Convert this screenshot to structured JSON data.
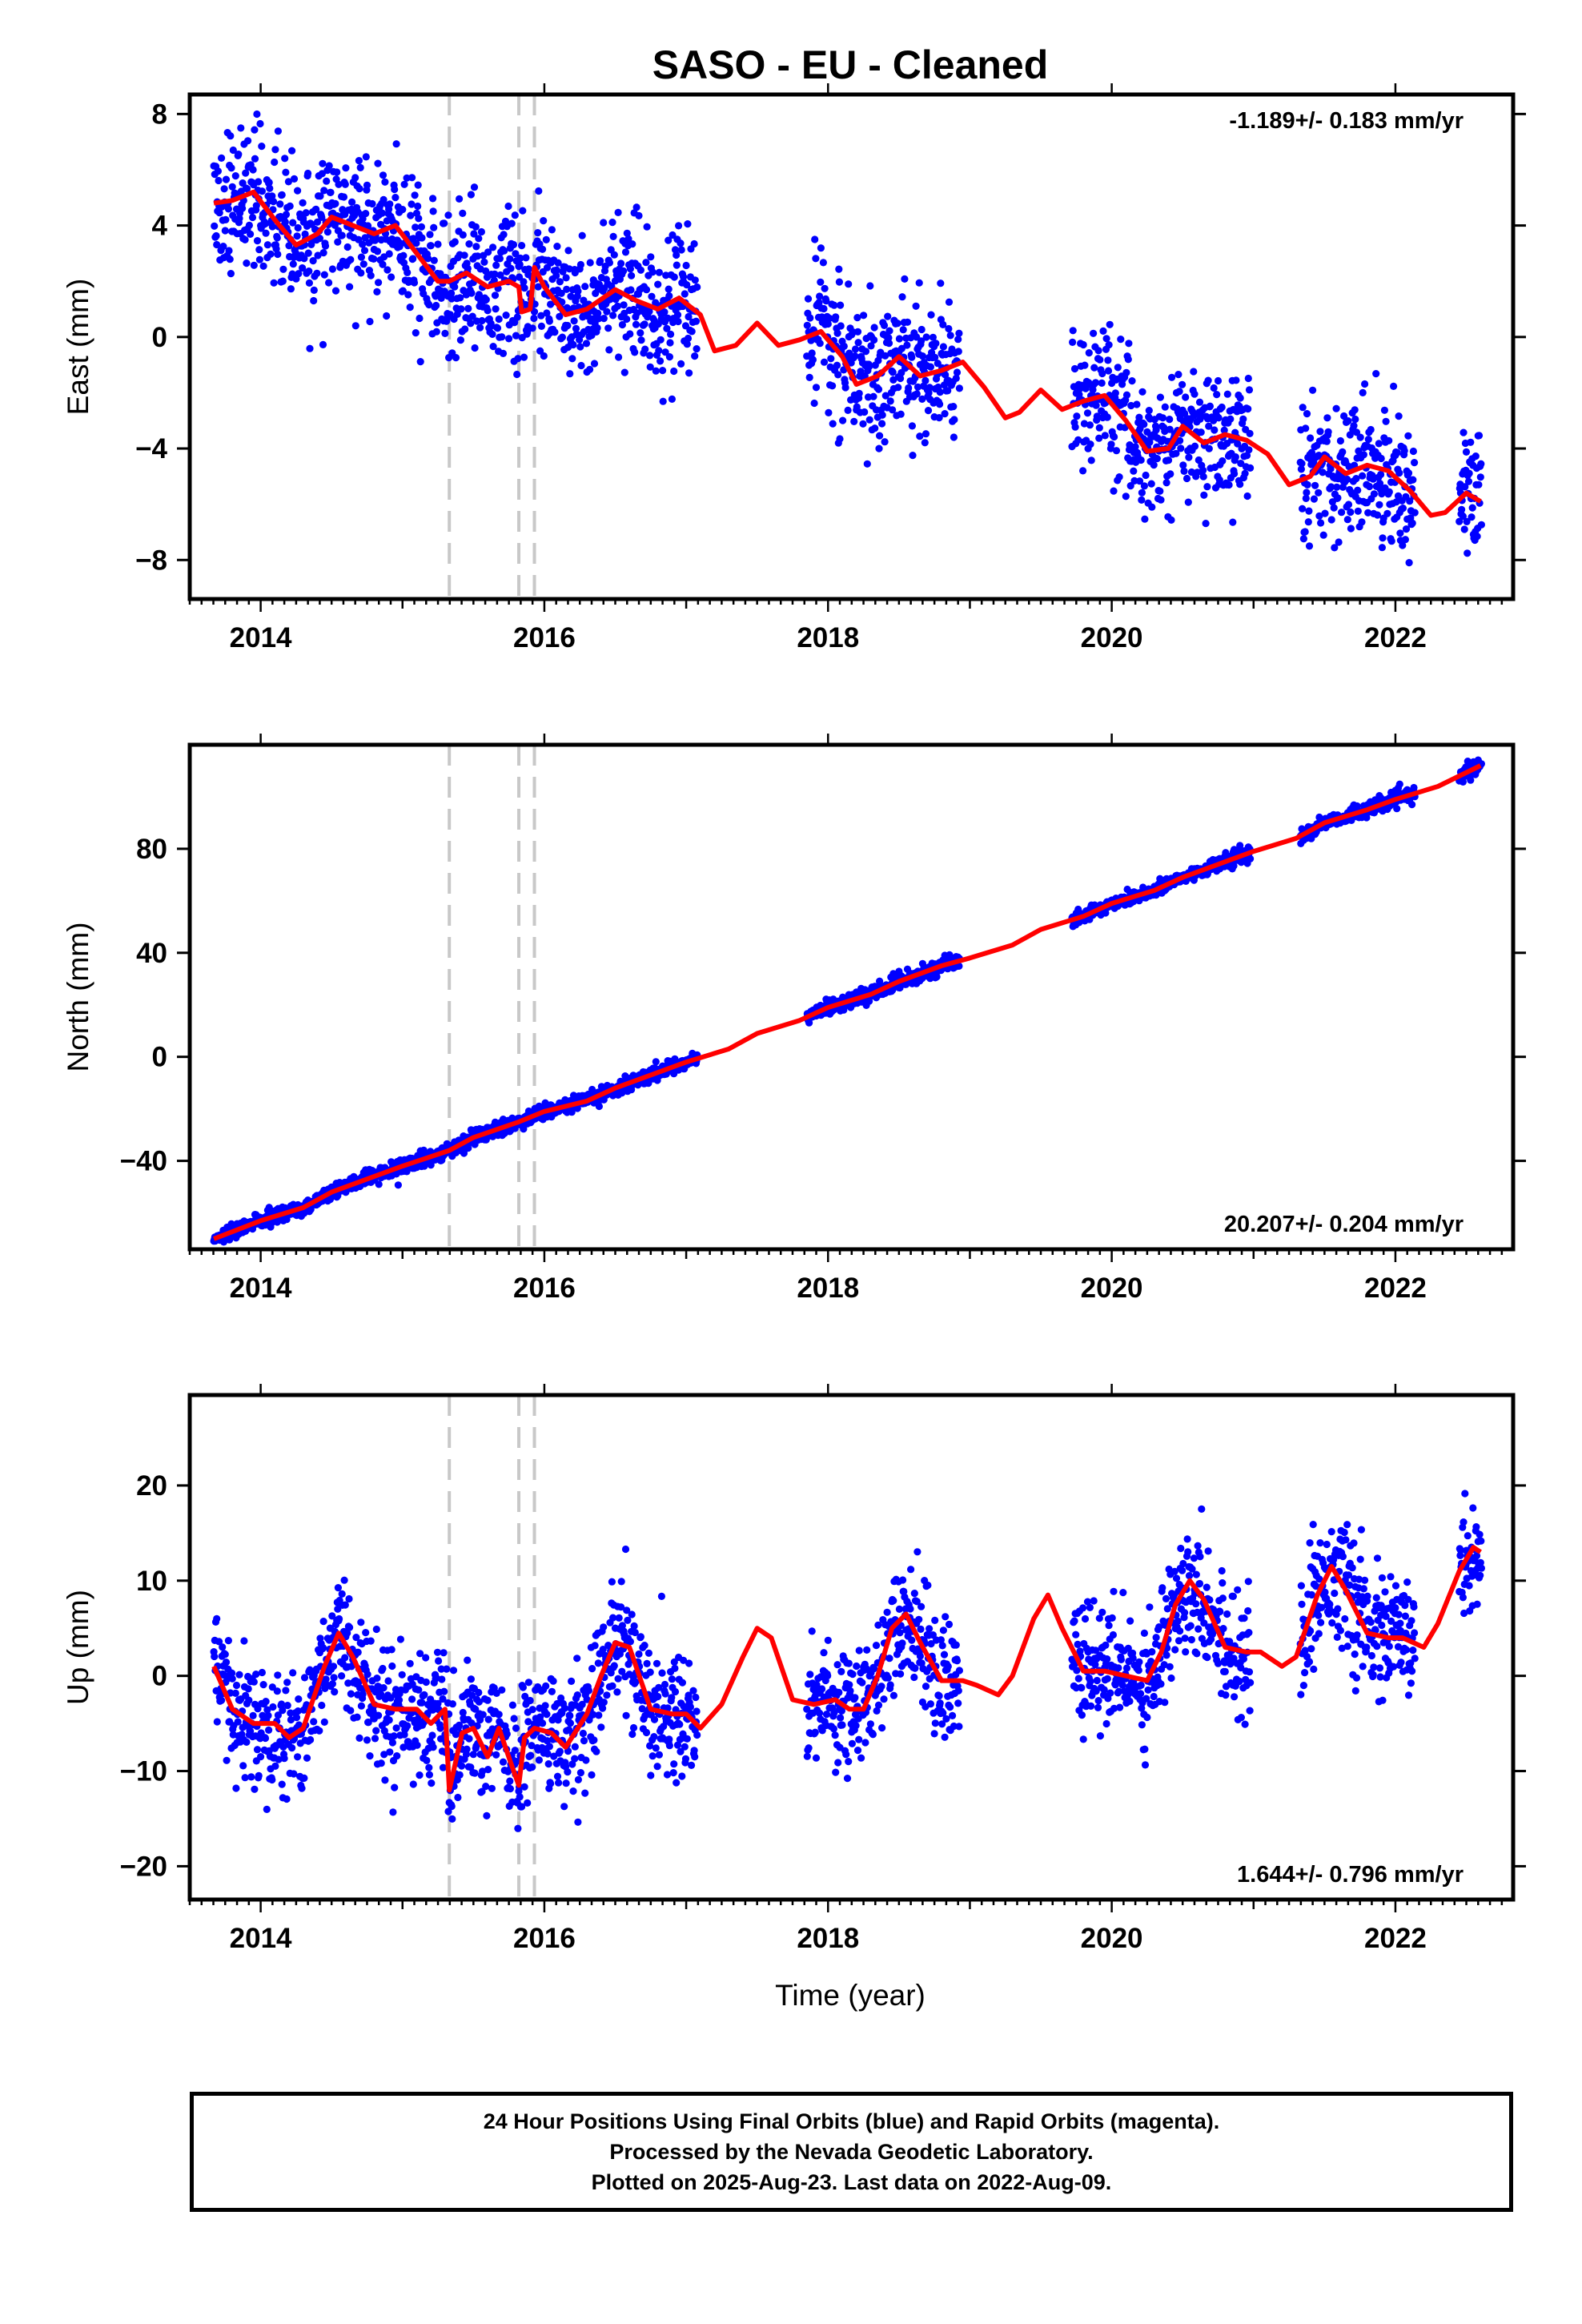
{
  "page": {
    "title": "SASO  - EU - Cleaned",
    "xlabel": "Time (year)"
  },
  "footer": {
    "line1": "24 Hour Positions Using Final Orbits (blue) and Rapid Orbits (magenta).",
    "line2": "Processed by the Nevada Geodetic Laboratory.",
    "line3": "Plotted on 2025-Aug-23. Last data on 2022-Aug-09."
  },
  "colors": {
    "data_points": "#0000ff",
    "model_line": "#ff0000",
    "event_lines": "#c8c8c8"
  },
  "chart_data": [
    {
      "type": "scatter",
      "name": "east",
      "ylabel": "East (mm)",
      "rate_label": "-1.189+/- 0.183 mm/yr",
      "rate_position": "top-right",
      "xlim": [
        2013.5,
        2022.83
      ],
      "ylim": [
        -9.4,
        8.7
      ],
      "xticks": [
        2014,
        2016,
        2018,
        2020,
        2022
      ],
      "yticks": [
        8,
        4,
        0,
        -4,
        -8
      ],
      "ytick_labels": [
        "8",
        "4",
        "0",
        "−4",
        "−8"
      ],
      "event_lines": [
        2015.33,
        2015.82,
        2015.93
      ],
      "model": [
        [
          2013.67,
          4.8
        ],
        [
          2013.8,
          4.9
        ],
        [
          2013.95,
          5.2
        ],
        [
          2014.1,
          4.2
        ],
        [
          2014.25,
          3.3
        ],
        [
          2014.4,
          3.7
        ],
        [
          2014.5,
          4.3
        ],
        [
          2014.65,
          4.0
        ],
        [
          2014.8,
          3.7
        ],
        [
          2014.95,
          4.0
        ],
        [
          2015.1,
          3.0
        ],
        [
          2015.25,
          2.0
        ],
        [
          2015.33,
          2.0
        ],
        [
          2015.45,
          2.3
        ],
        [
          2015.6,
          1.8
        ],
        [
          2015.75,
          2.0
        ],
        [
          2015.82,
          1.8
        ],
        [
          2015.84,
          0.9
        ],
        [
          2015.9,
          1.0
        ],
        [
          2015.93,
          2.5
        ],
        [
          2016.0,
          1.8
        ],
        [
          2016.15,
          0.8
        ],
        [
          2016.3,
          1.0
        ],
        [
          2016.5,
          1.7
        ],
        [
          2016.65,
          1.3
        ],
        [
          2016.8,
          1.0
        ],
        [
          2016.95,
          1.4
        ],
        [
          2017.1,
          0.8
        ],
        [
          2017.2,
          -0.5
        ],
        [
          2017.35,
          -0.3
        ],
        [
          2017.5,
          0.5
        ],
        [
          2017.65,
          -0.3
        ],
        [
          2017.8,
          -0.1
        ],
        [
          2017.95,
          0.2
        ],
        [
          2018.1,
          -0.7
        ],
        [
          2018.2,
          -1.7
        ],
        [
          2018.35,
          -1.4
        ],
        [
          2018.5,
          -0.7
        ],
        [
          2018.65,
          -1.4
        ],
        [
          2018.8,
          -1.2
        ],
        [
          2018.95,
          -0.9
        ],
        [
          2019.1,
          -1.8
        ],
        [
          2019.25,
          -2.9
        ],
        [
          2019.35,
          -2.7
        ],
        [
          2019.5,
          -1.9
        ],
        [
          2019.65,
          -2.6
        ],
        [
          2019.8,
          -2.3
        ],
        [
          2019.95,
          -2.1
        ],
        [
          2020.1,
          -3.0
        ],
        [
          2020.25,
          -4.1
        ],
        [
          2020.4,
          -4.0
        ],
        [
          2020.5,
          -3.2
        ],
        [
          2020.65,
          -3.8
        ],
        [
          2020.8,
          -3.5
        ],
        [
          2020.95,
          -3.7
        ],
        [
          2021.1,
          -4.2
        ],
        [
          2021.25,
          -5.3
        ],
        [
          2021.4,
          -5.0
        ],
        [
          2021.5,
          -4.3
        ],
        [
          2021.65,
          -4.9
        ],
        [
          2021.8,
          -4.6
        ],
        [
          2021.95,
          -4.8
        ],
        [
          2022.1,
          -5.5
        ],
        [
          2022.25,
          -6.4
        ],
        [
          2022.35,
          -6.3
        ],
        [
          2022.5,
          -5.6
        ],
        [
          2022.6,
          -5.9
        ]
      ]
    },
    {
      "type": "scatter",
      "name": "north",
      "ylabel": "North (mm)",
      "rate_label": "20.207+/- 0.204 mm/yr",
      "rate_position": "bottom-right",
      "xlim": [
        2013.5,
        2022.83
      ],
      "ylim": [
        -74,
        120
      ],
      "xticks": [
        2014,
        2016,
        2018,
        2020,
        2022
      ],
      "yticks": [
        80,
        40,
        0,
        -40
      ],
      "ytick_labels": [
        "80",
        "40",
        "0",
        "−40"
      ],
      "event_lines": [
        2015.33,
        2015.82,
        2015.93
      ],
      "model": [
        [
          2013.67,
          -70
        ],
        [
          2014.0,
          -63
        ],
        [
          2014.3,
          -58
        ],
        [
          2014.5,
          -52
        ],
        [
          2014.8,
          -46
        ],
        [
          2015.0,
          -42
        ],
        [
          2015.33,
          -36
        ],
        [
          2015.5,
          -31
        ],
        [
          2015.82,
          -25
        ],
        [
          2016.0,
          -21
        ],
        [
          2016.3,
          -17
        ],
        [
          2016.5,
          -12
        ],
        [
          2016.8,
          -6
        ],
        [
          2017.0,
          -2
        ],
        [
          2017.3,
          3
        ],
        [
          2017.5,
          9
        ],
        [
          2017.8,
          14
        ],
        [
          2018.0,
          19
        ],
        [
          2018.3,
          24
        ],
        [
          2018.5,
          29
        ],
        [
          2018.8,
          35
        ],
        [
          2019.0,
          38
        ],
        [
          2019.3,
          43
        ],
        [
          2019.5,
          49
        ],
        [
          2019.8,
          54
        ],
        [
          2020.0,
          59
        ],
        [
          2020.3,
          64
        ],
        [
          2020.5,
          69
        ],
        [
          2020.8,
          75
        ],
        [
          2021.0,
          79
        ],
        [
          2021.3,
          84
        ],
        [
          2021.5,
          90
        ],
        [
          2021.8,
          95
        ],
        [
          2022.0,
          99
        ],
        [
          2022.3,
          104
        ],
        [
          2022.6,
          112
        ]
      ]
    },
    {
      "type": "scatter",
      "name": "up",
      "ylabel": "Up (mm)",
      "rate_label": "1.644+/- 0.796 mm/yr",
      "rate_position": "bottom-right",
      "xlim": [
        2013.5,
        2022.83
      ],
      "ylim": [
        -23.5,
        29.5
      ],
      "xticks": [
        2014,
        2016,
        2018,
        2020,
        2022
      ],
      "yticks": [
        20,
        10,
        0,
        -10,
        -20
      ],
      "ytick_labels": [
        "20",
        "10",
        "0",
        "−10",
        "−20"
      ],
      "event_lines": [
        2015.33,
        2015.82,
        2015.93
      ],
      "model": [
        [
          2013.67,
          1.0
        ],
        [
          2013.8,
          -3.5
        ],
        [
          2013.95,
          -5.0
        ],
        [
          2014.1,
          -5.0
        ],
        [
          2014.2,
          -6.5
        ],
        [
          2014.3,
          -5.5
        ],
        [
          2014.45,
          1.0
        ],
        [
          2014.55,
          4.5
        ],
        [
          2014.65,
          2.0
        ],
        [
          2014.8,
          -3.0
        ],
        [
          2014.95,
          -3.5
        ],
        [
          2015.1,
          -3.5
        ],
        [
          2015.2,
          -5.0
        ],
        [
          2015.3,
          -3.5
        ],
        [
          2015.33,
          -12.0
        ],
        [
          2015.42,
          -6.0
        ],
        [
          2015.5,
          -5.5
        ],
        [
          2015.6,
          -8.5
        ],
        [
          2015.68,
          -5.5
        ],
        [
          2015.76,
          -9.0
        ],
        [
          2015.82,
          -11.5
        ],
        [
          2015.86,
          -6.5
        ],
        [
          2015.93,
          -5.5
        ],
        [
          2016.05,
          -6.0
        ],
        [
          2016.15,
          -7.5
        ],
        [
          2016.3,
          -4.0
        ],
        [
          2016.4,
          0.0
        ],
        [
          2016.5,
          3.5
        ],
        [
          2016.6,
          3.0
        ],
        [
          2016.75,
          -3.5
        ],
        [
          2016.9,
          -4.0
        ],
        [
          2017.0,
          -4.0
        ],
        [
          2017.1,
          -5.5
        ],
        [
          2017.25,
          -3.0
        ],
        [
          2017.4,
          2.0
        ],
        [
          2017.5,
          5.0
        ],
        [
          2017.6,
          4.0
        ],
        [
          2017.75,
          -2.5
        ],
        [
          2017.9,
          -3.0
        ],
        [
          2018.05,
          -2.5
        ],
        [
          2018.15,
          -3.5
        ],
        [
          2018.25,
          -3.5
        ],
        [
          2018.35,
          0.0
        ],
        [
          2018.45,
          5.0
        ],
        [
          2018.55,
          6.5
        ],
        [
          2018.65,
          3.5
        ],
        [
          2018.8,
          -0.5
        ],
        [
          2018.95,
          -0.5
        ],
        [
          2019.05,
          -1.0
        ],
        [
          2019.2,
          -2.0
        ],
        [
          2019.3,
          0.0
        ],
        [
          2019.45,
          6.0
        ],
        [
          2019.55,
          8.5
        ],
        [
          2019.65,
          5.0
        ],
        [
          2019.8,
          0.5
        ],
        [
          2019.95,
          0.5
        ],
        [
          2020.1,
          0.0
        ],
        [
          2020.25,
          -0.5
        ],
        [
          2020.35,
          2.5
        ],
        [
          2020.45,
          7.5
        ],
        [
          2020.55,
          10.0
        ],
        [
          2020.65,
          8.0
        ],
        [
          2020.8,
          3.0
        ],
        [
          2020.95,
          2.5
        ],
        [
          2021.05,
          2.5
        ],
        [
          2021.2,
          1.0
        ],
        [
          2021.3,
          2.0
        ],
        [
          2021.45,
          8.5
        ],
        [
          2021.55,
          11.5
        ],
        [
          2021.65,
          9.0
        ],
        [
          2021.8,
          4.5
        ],
        [
          2021.95,
          4.0
        ],
        [
          2022.05,
          4.0
        ],
        [
          2022.2,
          3.0
        ],
        [
          2022.3,
          5.5
        ],
        [
          2022.45,
          11.0
        ],
        [
          2022.55,
          13.5
        ],
        [
          2022.6,
          13.0
        ]
      ]
    }
  ]
}
